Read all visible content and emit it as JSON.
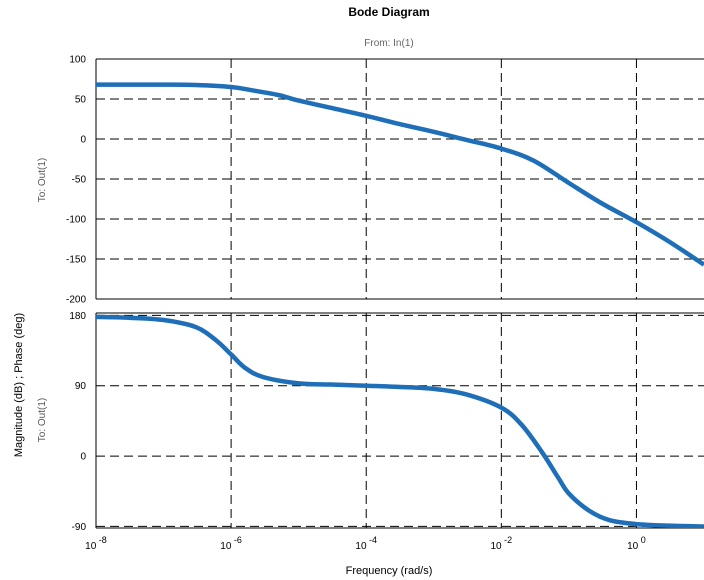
{
  "chart_data": {
    "type": "line",
    "title": "Bode Diagram",
    "subtitle": "From: In(1)",
    "ylabel": "Magnitude (dB) ; Phase (deg)",
    "xlabel": "Frequency  (rad/s)",
    "xscale": "log",
    "xlim": [
      1e-08,
      10
    ],
    "x_ticks": [
      {
        "base": "10",
        "exp": "-8"
      },
      {
        "base": "10",
        "exp": "-6"
      },
      {
        "base": "10",
        "exp": "-4"
      },
      {
        "base": "10",
        "exp": "-2"
      },
      {
        "base": "10",
        "exp": "0"
      }
    ],
    "grid": true,
    "line_color": "#1f6fb8",
    "panels": [
      {
        "name": "magnitude",
        "row_label": "To: Out(1)",
        "ylim": [
          -200,
          100
        ],
        "y_ticks": [
          "100",
          "50",
          "0",
          "-50",
          "-100",
          "-150",
          "-200"
        ],
        "series": [
          {
            "x": [
              1e-08,
              3e-08,
              1e-07,
              3e-07,
              1e-06,
              2e-06,
              5e-06,
              1e-05,
              3e-05,
              0.0001,
              0.0003,
              0.001,
              0.003,
              0.01,
              0.03,
              0.1,
              0.3,
              1,
              3,
              10
            ],
            "y": [
              68,
              68,
              68,
              67.5,
              65,
              61,
              55,
              48,
              39,
              29,
              19,
              9,
              -1,
              -12,
              -27,
              -55,
              -80,
              -104,
              -128,
              -157
            ]
          }
        ]
      },
      {
        "name": "phase",
        "row_label": "To: Out(1)",
        "ylim": [
          -92,
          183
        ],
        "y_ticks": [
          "180",
          "90",
          "0",
          "-90"
        ],
        "series": [
          {
            "x": [
              1e-08,
              3e-08,
              1e-07,
              3e-07,
              6e-07,
              1e-06,
              1.6e-06,
              3e-06,
              1e-05,
              3e-05,
              0.0001,
              0.0003,
              0.001,
              0.003,
              0.01,
              0.02,
              0.04,
              0.07,
              0.1,
              0.2,
              0.4,
              1,
              3,
              10
            ],
            "y": [
              178,
              177,
              174,
              165,
              148,
              130,
              113,
              101,
              93,
              91.5,
              90,
              88.5,
              86,
              79,
              62,
              40,
              5,
              -28,
              -48,
              -70,
              -82,
              -87,
              -89,
              -90
            ]
          }
        ]
      }
    ]
  }
}
